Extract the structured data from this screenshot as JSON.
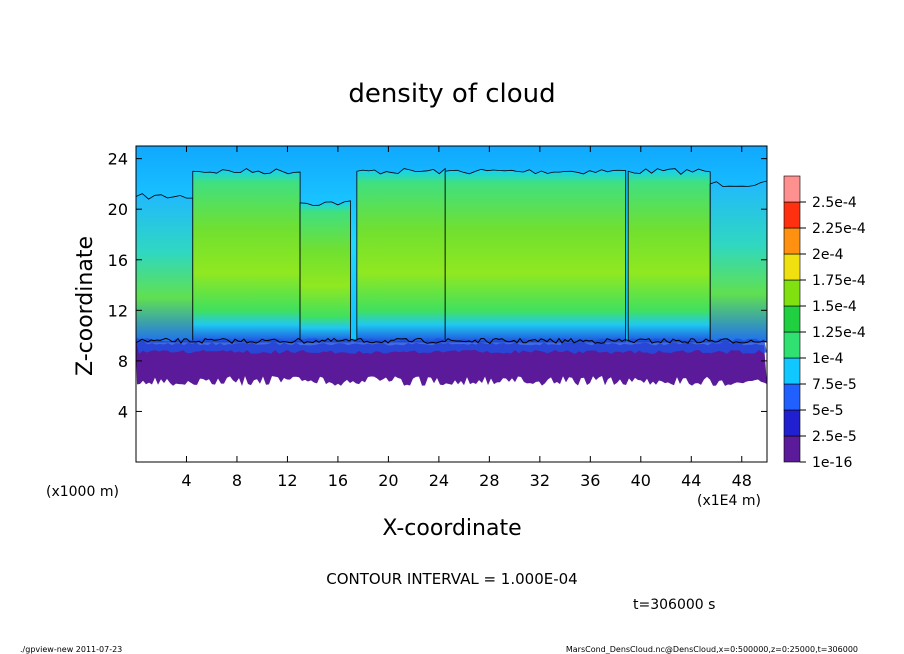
{
  "chart_data": {
    "type": "heatmap",
    "title": "density of cloud",
    "xlabel": "X-coordinate",
    "ylabel": "Z-coordinate",
    "x_unit_label": "(x1E4 m)",
    "y_unit_label": "(x1000 m)",
    "xlim": [
      0,
      50
    ],
    "ylim": [
      0,
      25
    ],
    "x_ticks": [
      4,
      8,
      12,
      16,
      20,
      24,
      28,
      32,
      36,
      40,
      44,
      48
    ],
    "y_ticks": [
      4,
      8,
      12,
      16,
      20,
      24
    ],
    "colorbar_labels": [
      "1e-16",
      "2.5e-5",
      "5e-5",
      "7.5e-5",
      "1e-4",
      "1.25e-4",
      "1.5e-4",
      "1.75e-4",
      "2e-4",
      "2.25e-4",
      "2.5e-4"
    ],
    "colorbar_colors": [
      "#5a1a9a",
      "#2020d0",
      "#2060ff",
      "#10c8ff",
      "#30e070",
      "#20d040",
      "#80e010",
      "#f0e010",
      "#ff9010",
      "#ff3010",
      "#ff9090"
    ],
    "contour_interval": "CONTOUR INTERVAL = 1.000E-04",
    "time_label": "t=306000 s",
    "footer_left": "./gpview-new  2011-07-23",
    "footer_right": "MarsCond_DensCloud.nc@DensCloud,x=0:500000,z=0:25000,t=306000",
    "cloud_base_z": 9.5,
    "cloud_bottom_purple_z": 6.8,
    "cloud_top_z": 23.0,
    "core_value_range": [
      0.0001,
      0.00016
    ],
    "cloud_columns": [
      {
        "x0": 0.0,
        "x1": 4.5,
        "top": 21.0,
        "kind": "edge"
      },
      {
        "x0": 4.5,
        "x1": 13.0,
        "top": 23.0,
        "kind": "core"
      },
      {
        "x0": 13.0,
        "x1": 17.0,
        "top": 20.5,
        "kind": "core"
      },
      {
        "x0": 17.5,
        "x1": 24.5,
        "top": 23.0,
        "kind": "core"
      },
      {
        "x0": 24.5,
        "x1": 38.8,
        "top": 23.0,
        "kind": "core"
      },
      {
        "x0": 39.0,
        "x1": 45.5,
        "top": 23.0,
        "kind": "core"
      },
      {
        "x0": 45.5,
        "x1": 50.0,
        "top": 22.0,
        "kind": "edge"
      }
    ]
  }
}
